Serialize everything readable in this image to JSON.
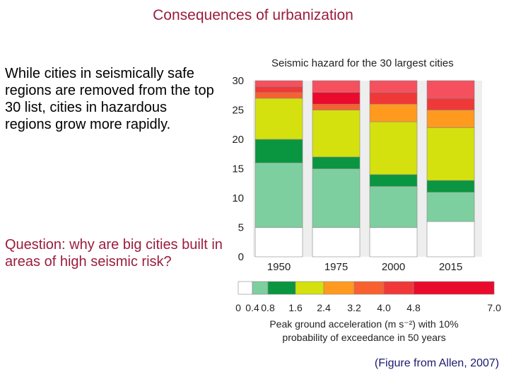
{
  "slide": {
    "title": "Consequences of urbanization",
    "body": "While cities in seismically safe regions are removed from the top 30 list, cities in hazardous regions grow more rapidly.",
    "question": "Question: why are big cities built in areas of high seismic risk?",
    "credit": "(Figure from Allen, 2007)"
  },
  "colors": {
    "title": "#9b1d3d",
    "question": "#9b1d3d",
    "credit": "#1a1a6e"
  },
  "chart_data": {
    "type": "bar",
    "stacked": true,
    "title": "Seismic hazard for the 30 largest cities",
    "categories": [
      "1950",
      "1975",
      "2000",
      "2015"
    ],
    "ylim": [
      0,
      30
    ],
    "yticks": [
      0,
      5,
      10,
      15,
      20,
      25,
      30
    ],
    "grid": false,
    "series": [
      {
        "color": "#ffffff",
        "values": [
          5,
          5,
          5,
          6
        ]
      },
      {
        "color": "#7ecf9f",
        "values": [
          11,
          10,
          7,
          5
        ]
      },
      {
        "color": "#0a9640",
        "values": [
          4,
          2,
          2,
          2
        ]
      },
      {
        "color": "#d4e10e",
        "values": [
          7,
          8,
          9,
          9
        ]
      },
      {
        "color": "#ff9a1f",
        "values": [
          0,
          0,
          3,
          3
        ]
      },
      {
        "color": "#f86030",
        "values": [
          1,
          1,
          0,
          0
        ]
      },
      {
        "color": "#f03838",
        "values": [
          1,
          0,
          2,
          2
        ]
      },
      {
        "color": "#ea0b2c",
        "values": [
          0,
          2,
          0,
          0
        ]
      },
      {
        "color": "#f5505e",
        "values": [
          1,
          2,
          2,
          3
        ]
      }
    ],
    "colorbar": {
      "ticks": [
        "0",
        "0.4",
        "0.8",
        "1.6",
        "2.4",
        "3.2",
        "4.0",
        "4.8",
        "7.0"
      ],
      "colors": [
        "#ffffff",
        "#7ecf9f",
        "#0a9640",
        "#d4e10e",
        "#ff9a1f",
        "#f86030",
        "#f03838",
        "#ea0b2c",
        "#f5505e"
      ],
      "label_line1": "Peak ground acceleration (m s⁻²) with 10%",
      "label_line2": "probability of exceedance in 50 years"
    }
  }
}
